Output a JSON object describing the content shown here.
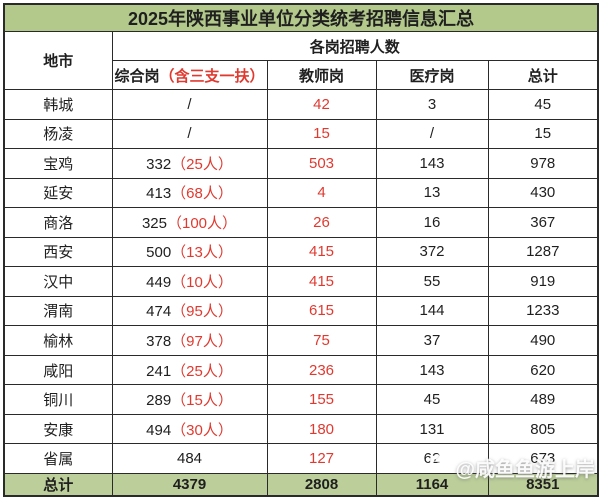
{
  "title": "2025年陕西事业单位分类统考招聘信息汇总",
  "table": {
    "headers": {
      "city": "地市",
      "group": "各岗招聘人数",
      "comprehensive": "综合岗",
      "comprehensive_note": "（含三支一扶）",
      "teacher": "教师岗",
      "medical": "医疗岗",
      "total": "总计"
    },
    "rows": [
      {
        "city": "韩城",
        "comprehensive": "/",
        "comprehensive_note": "",
        "teacher": "42",
        "medical": "3",
        "total": "45"
      },
      {
        "city": "杨凌",
        "comprehensive": "/",
        "comprehensive_note": "",
        "teacher": "15",
        "medical": "/",
        "total": "15"
      },
      {
        "city": "宝鸡",
        "comprehensive": "332",
        "comprehensive_note": "（25人）",
        "teacher": "503",
        "medical": "143",
        "total": "978"
      },
      {
        "city": "延安",
        "comprehensive": "413",
        "comprehensive_note": "（68人）",
        "teacher": "4",
        "medical": "13",
        "total": "430"
      },
      {
        "city": "商洛",
        "comprehensive": "325",
        "comprehensive_note": "（100人）",
        "teacher": "26",
        "medical": "16",
        "total": "367"
      },
      {
        "city": "西安",
        "comprehensive": "500",
        "comprehensive_note": "（13人）",
        "teacher": "415",
        "medical": "372",
        "total": "1287"
      },
      {
        "city": "汉中",
        "comprehensive": "449",
        "comprehensive_note": "（10人）",
        "teacher": "415",
        "medical": "55",
        "total": "919"
      },
      {
        "city": "渭南",
        "comprehensive": "474",
        "comprehensive_note": "（95人）",
        "teacher": "615",
        "medical": "144",
        "total": "1233"
      },
      {
        "city": "榆林",
        "comprehensive": "378",
        "comprehensive_note": "（97人）",
        "teacher": "75",
        "medical": "37",
        "total": "490"
      },
      {
        "city": "咸阳",
        "comprehensive": "241",
        "comprehensive_note": "（25人）",
        "teacher": "236",
        "medical": "143",
        "total": "620"
      },
      {
        "city": "铜川",
        "comprehensive": "289",
        "comprehensive_note": "（15人）",
        "teacher": "155",
        "medical": "45",
        "total": "489"
      },
      {
        "city": "安康",
        "comprehensive": "494",
        "comprehensive_note": "（30人）",
        "teacher": "180",
        "medical": "131",
        "total": "805"
      },
      {
        "city": "省属",
        "comprehensive": "484",
        "comprehensive_note": "",
        "teacher": "127",
        "medical": "62",
        "total": "673"
      }
    ],
    "total_row": {
      "city": "总计",
      "comprehensive": "4379",
      "teacher": "2808",
      "medical": "1164",
      "total": "8351"
    }
  },
  "watermark": {
    "icon": "paw-icon",
    "text": "@咸鱼鱼游上岸"
  },
  "colors": {
    "title_bg": "#b3c98c",
    "total_bg": "#bccf9a",
    "highlight_red": "#e03a30",
    "border": "#2a2a2a",
    "text": "#1f1f1f"
  },
  "chart_data": {
    "type": "table",
    "title": "2025年陕西事业单位分类统考招聘信息汇总",
    "columns": [
      "地市",
      "综合岗（含三支一扶）",
      "教师岗",
      "医疗岗",
      "总计"
    ],
    "rows": [
      [
        "韩城",
        "/",
        "42",
        "3",
        "45"
      ],
      [
        "杨凌",
        "/",
        "15",
        "/",
        "15"
      ],
      [
        "宝鸡",
        "332（25人）",
        "503",
        "143",
        "978"
      ],
      [
        "延安",
        "413（68人）",
        "4",
        "13",
        "430"
      ],
      [
        "商洛",
        "325（100人）",
        "26",
        "16",
        "367"
      ],
      [
        "西安",
        "500（13人）",
        "415",
        "372",
        "1287"
      ],
      [
        "汉中",
        "449（10人）",
        "415",
        "55",
        "919"
      ],
      [
        "渭南",
        "474（95人）",
        "615",
        "144",
        "1233"
      ],
      [
        "榆林",
        "378（97人）",
        "75",
        "37",
        "490"
      ],
      [
        "咸阳",
        "241（25人）",
        "236",
        "143",
        "620"
      ],
      [
        "铜川",
        "289（15人）",
        "155",
        "45",
        "489"
      ],
      [
        "安康",
        "494（30人）",
        "180",
        "131",
        "805"
      ],
      [
        "省属",
        "484",
        "127",
        "62",
        "673"
      ],
      [
        "总计",
        "4379",
        "2808",
        "1164",
        "8351"
      ]
    ]
  }
}
